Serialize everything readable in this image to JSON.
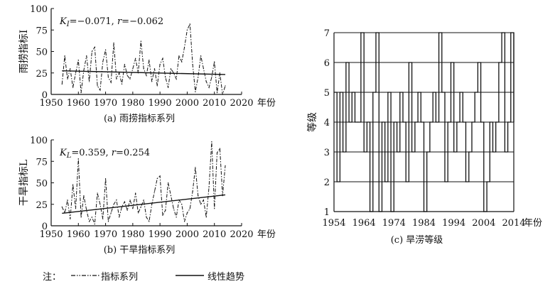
{
  "note": {
    "prefix": "注：",
    "series_label": "指标系列",
    "trend_label": "线性趋势"
  },
  "chart_data": [
    {
      "type": "line",
      "caption": "(a) 雨捞指标系列",
      "ylabel": "雨捞指标I",
      "xlabel": "年份",
      "annotation": {
        "k_label": "K_I",
        "k_value": "=−0.071, ",
        "r_label": "r",
        "r_value": "=−0.062"
      },
      "xlim": [
        1950,
        2020
      ],
      "ylim": [
        0,
        100
      ],
      "x_ticks": [
        1950,
        1960,
        1970,
        1980,
        1990,
        2000,
        2010,
        2020
      ],
      "y_ticks": [
        0,
        25,
        50,
        75,
        100
      ],
      "grid": false,
      "x": [
        1954,
        1955,
        1956,
        1957,
        1958,
        1959,
        1960,
        1961,
        1962,
        1963,
        1964,
        1965,
        1966,
        1967,
        1968,
        1969,
        1970,
        1971,
        1972,
        1973,
        1974,
        1975,
        1976,
        1977,
        1978,
        1979,
        1980,
        1981,
        1982,
        1983,
        1984,
        1985,
        1986,
        1987,
        1988,
        1989,
        1990,
        1991,
        1992,
        1993,
        1994,
        1995,
        1996,
        1997,
        1998,
        1999,
        2000,
        2001,
        2002,
        2003,
        2004,
        2005,
        2006,
        2007,
        2008,
        2009,
        2010,
        2011,
        2012,
        2013,
        2014
      ],
      "series": [
        {
          "values": [
            12,
            45,
            18,
            30,
            8,
            25,
            40,
            2,
            28,
            45,
            15,
            50,
            55,
            10,
            5,
            38,
            52,
            20,
            14,
            60,
            18,
            25,
            12,
            35,
            22,
            18,
            30,
            42,
            25,
            62,
            30,
            22,
            40,
            15,
            30,
            10,
            35,
            42,
            20,
            8,
            30,
            25,
            18,
            45,
            38,
            55,
            75,
            82,
            35,
            3,
            20,
            45,
            30,
            15,
            8,
            20,
            38,
            2,
            25,
            0,
            10
          ]
        },
        {
          "trend": [
            1954,
            27.5,
            2014,
            23.2
          ]
        }
      ]
    },
    {
      "type": "line",
      "caption": "(b) 干旱指标系列",
      "ylabel": "干旱指标L",
      "xlabel": "年份",
      "annotation": {
        "k_label": "K_L",
        "k_value": "=0.359, ",
        "r_label": "r",
        "r_value": "=0.254"
      },
      "xlim": [
        1950,
        2020
      ],
      "ylim": [
        0,
        100
      ],
      "x_ticks": [
        1950,
        1960,
        1970,
        1980,
        1990,
        2000,
        2010,
        2020
      ],
      "y_ticks": [
        0,
        25,
        50,
        75,
        100
      ],
      "grid": false,
      "x": [
        1954,
        1955,
        1956,
        1957,
        1958,
        1959,
        1960,
        1961,
        1962,
        1963,
        1964,
        1965,
        1966,
        1967,
        1968,
        1969,
        1970,
        1971,
        1972,
        1973,
        1974,
        1975,
        1976,
        1977,
        1978,
        1979,
        1980,
        1981,
        1982,
        1983,
        1984,
        1985,
        1986,
        1987,
        1988,
        1989,
        1990,
        1991,
        1992,
        1993,
        1994,
        1995,
        1996,
        1997,
        1998,
        1999,
        2000,
        2001,
        2002,
        2003,
        2004,
        2005,
        2006,
        2007,
        2008,
        2009,
        2010,
        2011,
        2012,
        2013,
        2014
      ],
      "series": [
        {
          "values": [
            22,
            15,
            30,
            8,
            48,
            20,
            78,
            10,
            35,
            18,
            5,
            10,
            2,
            38,
            25,
            8,
            55,
            5,
            15,
            25,
            30,
            10,
            22,
            28,
            18,
            30,
            20,
            38,
            15,
            22,
            30,
            10,
            5,
            25,
            40,
            55,
            58,
            12,
            18,
            50,
            35,
            20,
            10,
            30,
            25,
            5,
            15,
            20,
            40,
            68,
            35,
            25,
            30,
            10,
            45,
            98,
            20,
            85,
            90,
            35,
            70
          ]
        },
        {
          "trend": [
            1954,
            14.5,
            2014,
            36.0
          ]
        }
      ]
    },
    {
      "type": "line",
      "caption": "(c) 旱涝等级",
      "ylabel": "等级",
      "xlabel": "年份",
      "xlim": [
        1954,
        2014
      ],
      "ylim": [
        1,
        7
      ],
      "x_ticks": [
        1954,
        1964,
        1974,
        1984,
        1994,
        2004,
        2014
      ],
      "y_ticks": [
        1,
        2,
        3,
        4,
        5,
        6,
        7
      ],
      "grid": true,
      "x": [
        1954,
        1955,
        1956,
        1957,
        1958,
        1959,
        1960,
        1961,
        1962,
        1963,
        1964,
        1965,
        1966,
        1967,
        1968,
        1969,
        1970,
        1971,
        1972,
        1973,
        1974,
        1975,
        1976,
        1977,
        1978,
        1979,
        1980,
        1981,
        1982,
        1983,
        1984,
        1985,
        1986,
        1987,
        1988,
        1989,
        1990,
        1991,
        1992,
        1993,
        1994,
        1995,
        1996,
        1997,
        1998,
        1999,
        2000,
        2001,
        2002,
        2003,
        2004,
        2005,
        2006,
        2007,
        2008,
        2009,
        2010,
        2011,
        2012,
        2013,
        2014
      ],
      "series": [
        {
          "values": [
            5,
            2,
            5,
            3,
            6,
            4,
            5,
            4,
            4,
            7,
            3,
            4,
            1,
            5,
            7,
            1,
            4,
            2,
            5,
            1,
            4,
            3,
            5,
            4,
            2,
            6,
            3,
            4,
            5,
            4,
            1,
            3,
            4,
            5,
            4,
            7,
            5,
            2,
            4,
            6,
            3,
            4,
            5,
            4,
            2,
            3,
            4,
            5,
            6,
            4,
            1,
            2,
            4,
            3,
            4,
            6,
            7,
            3,
            4,
            7,
            4
          ]
        }
      ]
    }
  ]
}
